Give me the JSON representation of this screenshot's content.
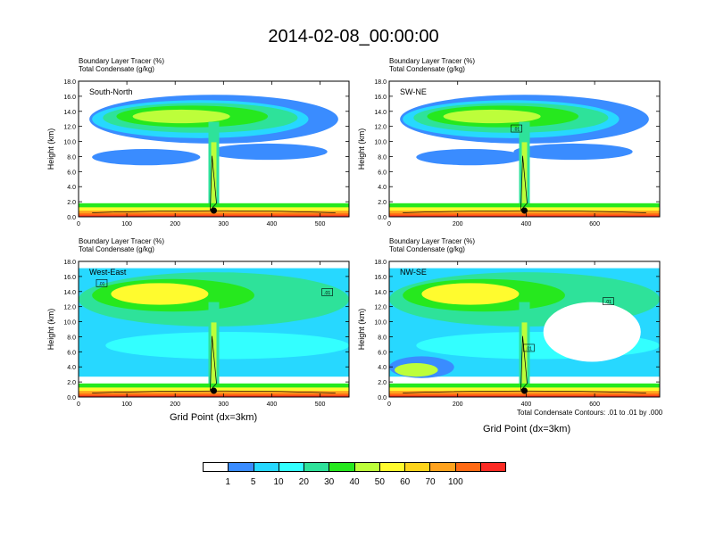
{
  "figure": {
    "title": "2014-02-08_00:00:00",
    "contour_note": "Total Condensate Contours: .01 to .01 by .000",
    "xaxis_title": "Grid Point (dx=3km)"
  },
  "colorbar": {
    "labels": [
      "1",
      "5",
      "10",
      "20",
      "30",
      "40",
      "50",
      "60",
      "70",
      "100"
    ],
    "colors": [
      "#ffffff",
      "#3a8cff",
      "#27d8ff",
      "#33ffff",
      "#2ee29a",
      "#26e81e",
      "#bdfe3a",
      "#fffb2e",
      "#fdd41c",
      "#ffa31e",
      "#ff6a14",
      "#fc2b24"
    ]
  },
  "chart_data": [
    {
      "type": "heatmap",
      "subtitle_1": "Boundary Layer Tracer   (%)",
      "subtitle_2": "Total Condensate   (g/kg)",
      "label": "South-North",
      "ylabel": "Height (km)",
      "xlabel": "",
      "xlim": [
        0,
        560
      ],
      "ylim": [
        0,
        18
      ],
      "xticks": [
        "0",
        "100",
        "200",
        "300",
        "400",
        "500"
      ],
      "yticks": [
        "0.0",
        "2.0",
        "4.0",
        "6.0",
        "8.0",
        "10.0",
        "12.0",
        "14.0",
        "16.0",
        "18.0"
      ],
      "marker_x": 280,
      "markers": []
    },
    {
      "type": "heatmap",
      "subtitle_1": "Boundary Layer Tracer   (%)",
      "subtitle_2": "Total Condensate   (g/kg)",
      "label": "SW-NE",
      "ylabel": "Height (km)",
      "xlabel": "",
      "xlim": [
        0,
        790
      ],
      "ylim": [
        0,
        18
      ],
      "xticks": [
        "0",
        "200",
        "400",
        "600"
      ],
      "yticks": [
        "0.0",
        "2.0",
        "4.0",
        "6.0",
        "8.0",
        "10.0",
        "12.0",
        "14.0",
        "16.0",
        "18.0"
      ],
      "marker_x": 395,
      "markers": [
        {
          "x": 372,
          "y": 11.6,
          "text": ".01"
        }
      ]
    },
    {
      "type": "heatmap",
      "subtitle_1": "Boundary Layer Tracer   (%)",
      "subtitle_2": "Total Condensate   (g/kg)",
      "label": "West-East",
      "ylabel": "Height (km)",
      "xlabel": "",
      "xlim": [
        0,
        560
      ],
      "ylim": [
        0,
        18
      ],
      "xticks": [
        "0",
        "100",
        "200",
        "300",
        "400",
        "500"
      ],
      "yticks": [
        "0.0",
        "2.0",
        "4.0",
        "6.0",
        "8.0",
        "10.0",
        "12.0",
        "14.0",
        "16.0",
        "18.0"
      ],
      "marker_x": 280,
      "markers": [
        {
          "x": 48,
          "y": 15.0,
          "text": ".01"
        },
        {
          "x": 515,
          "y": 13.8,
          "text": ".01"
        }
      ]
    },
    {
      "type": "heatmap",
      "subtitle_1": "Boundary Layer Tracer   (%)",
      "subtitle_2": "Total Condensate   (g/kg)",
      "label": "NW-SE",
      "ylabel": "Height (km)",
      "xlabel": "",
      "xlim": [
        0,
        790
      ],
      "ylim": [
        0,
        18
      ],
      "xticks": [
        "0",
        "200",
        "400",
        "600"
      ],
      "yticks": [
        "0.0",
        "2.0",
        "4.0",
        "6.0",
        "8.0",
        "10.0",
        "12.0",
        "14.0",
        "16.0",
        "18.0"
      ],
      "marker_x": 395,
      "markers": [
        {
          "x": 408,
          "y": 6.4,
          "text": ".01"
        },
        {
          "x": 640,
          "y": 12.6,
          "text": ".01"
        }
      ]
    }
  ]
}
